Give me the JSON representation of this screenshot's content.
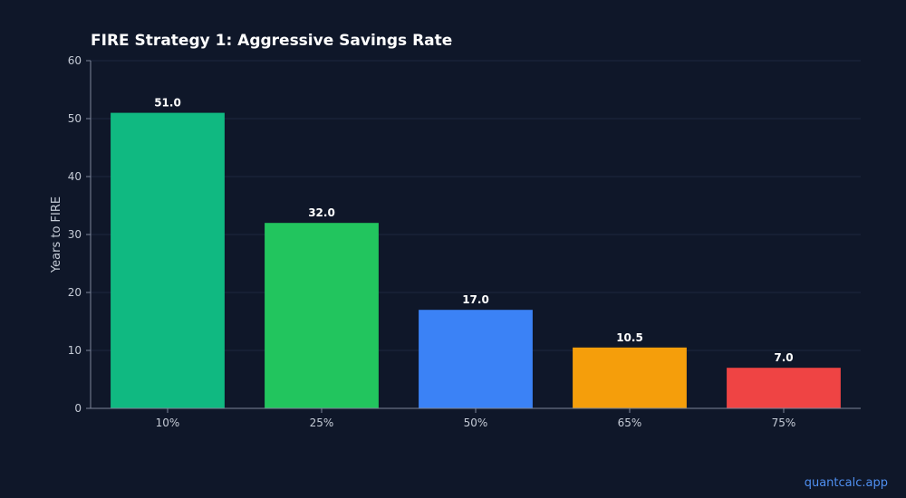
{
  "watermark": "quantcalc.app",
  "chart_data": {
    "type": "bar",
    "title": "FIRE Strategy 1: Aggressive Savings Rate",
    "xlabel": "",
    "ylabel": "Years to FIRE",
    "categories": [
      "10%",
      "25%",
      "50%",
      "65%",
      "75%"
    ],
    "values": [
      51.0,
      32.0,
      17.0,
      10.5,
      7.0
    ],
    "data_labels": [
      "51.0",
      "32.0",
      "17.0",
      "10.5",
      "7.0"
    ],
    "colors": [
      "#10b981",
      "#22c55e",
      "#3b82f6",
      "#f59e0b",
      "#ef4444"
    ],
    "ylim": [
      0,
      60
    ],
    "yticks": [
      0,
      10,
      20,
      30,
      40,
      50,
      60
    ],
    "grid": true,
    "background": "#0f1729"
  }
}
